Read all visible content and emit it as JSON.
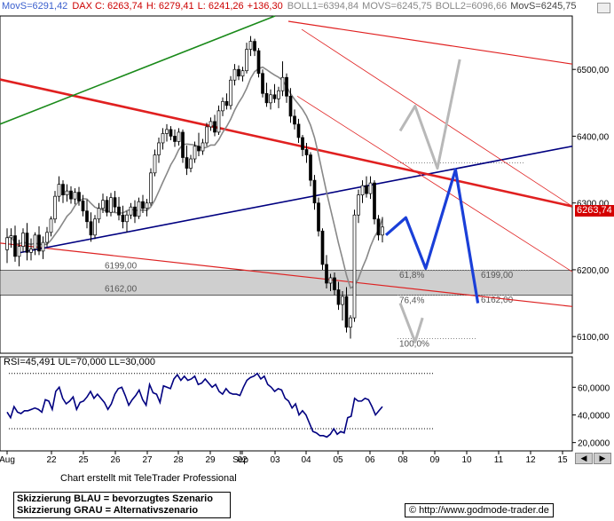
{
  "header": {
    "parts": [
      {
        "text": "MovS=6291,42",
        "color": "#3a5fcd"
      },
      {
        "text": "DAX C: 6263,74",
        "color": "#cc0000"
      },
      {
        "text": "H: 6279,41",
        "color": "#cc0000"
      },
      {
        "text": "L: 6241,26",
        "color": "#cc0000"
      },
      {
        "text": "+136,30",
        "color": "#cc0000"
      },
      {
        "text": "BOLL1=6394,84",
        "color": "#888888"
      },
      {
        "text": "MOVS=6245,75",
        "color": "#888888"
      },
      {
        "text": "BOLL2=6096,66",
        "color": "#888888"
      },
      {
        "text": "MovS=6245,75",
        "color": "#444444"
      }
    ]
  },
  "chart_data": [
    {
      "type": "candlestick",
      "y_ticks": [
        "6500,00",
        "6400,00",
        "6300,00",
        "6200,00",
        "6100,00"
      ],
      "ylim": [
        6075,
        6580
      ],
      "x_tick_labels": [
        "Aug",
        "22",
        "25",
        "26",
        "27",
        "28",
        "29",
        "Sep",
        "02",
        "03",
        "04",
        "05",
        "06",
        "08",
        "09",
        "10",
        "11",
        "12",
        "15"
      ],
      "price_tag": {
        "text": "6263,74",
        "color": "#d40000"
      },
      "support_zone": {
        "from": 6162,
        "to": 6199,
        "labels": [
          "6199,00",
          "6162,00"
        ]
      },
      "right_labels": [
        "6199,00",
        "6162,00"
      ],
      "fib_labels": [
        "61,8%",
        "76,4%",
        "100,0%"
      ],
      "ohlc": [
        {
          "o": 6230,
          "h": 6262,
          "l": 6210,
          "c": 6248
        },
        {
          "o": 6248,
          "h": 6262,
          "l": 6233,
          "c": 6251
        },
        {
          "o": 6251,
          "h": 6266,
          "l": 6212,
          "c": 6220
        },
        {
          "o": 6220,
          "h": 6245,
          "l": 6205,
          "c": 6235
        },
        {
          "o": 6235,
          "h": 6262,
          "l": 6226,
          "c": 6255
        },
        {
          "o": 6255,
          "h": 6270,
          "l": 6214,
          "c": 6226
        },
        {
          "o": 6226,
          "h": 6247,
          "l": 6214,
          "c": 6231
        },
        {
          "o": 6231,
          "h": 6256,
          "l": 6222,
          "c": 6252
        },
        {
          "o": 6252,
          "h": 6265,
          "l": 6222,
          "c": 6228
        },
        {
          "o": 6228,
          "h": 6250,
          "l": 6216,
          "c": 6241
        },
        {
          "o": 6241,
          "h": 6264,
          "l": 6234,
          "c": 6256
        },
        {
          "o": 6256,
          "h": 6280,
          "l": 6250,
          "c": 6276
        },
        {
          "o": 6276,
          "h": 6318,
          "l": 6270,
          "c": 6310
        },
        {
          "o": 6310,
          "h": 6340,
          "l": 6302,
          "c": 6328
        },
        {
          "o": 6328,
          "h": 6334,
          "l": 6300,
          "c": 6312
        },
        {
          "o": 6312,
          "h": 6328,
          "l": 6302,
          "c": 6318
        },
        {
          "o": 6318,
          "h": 6325,
          "l": 6299,
          "c": 6306
        },
        {
          "o": 6306,
          "h": 6322,
          "l": 6298,
          "c": 6316
        },
        {
          "o": 6316,
          "h": 6324,
          "l": 6296,
          "c": 6303
        },
        {
          "o": 6303,
          "h": 6312,
          "l": 6280,
          "c": 6288
        },
        {
          "o": 6288,
          "h": 6305,
          "l": 6262,
          "c": 6272
        },
        {
          "o": 6272,
          "h": 6286,
          "l": 6242,
          "c": 6252
        },
        {
          "o": 6252,
          "h": 6282,
          "l": 6246,
          "c": 6276
        },
        {
          "o": 6276,
          "h": 6300,
          "l": 6270,
          "c": 6292
        },
        {
          "o": 6292,
          "h": 6314,
          "l": 6285,
          "c": 6304
        },
        {
          "o": 6304,
          "h": 6310,
          "l": 6280,
          "c": 6286
        },
        {
          "o": 6286,
          "h": 6315,
          "l": 6280,
          "c": 6308
        },
        {
          "o": 6308,
          "h": 6318,
          "l": 6286,
          "c": 6294
        },
        {
          "o": 6294,
          "h": 6309,
          "l": 6274,
          "c": 6282
        },
        {
          "o": 6282,
          "h": 6296,
          "l": 6262,
          "c": 6272
        },
        {
          "o": 6272,
          "h": 6288,
          "l": 6256,
          "c": 6282
        },
        {
          "o": 6282,
          "h": 6300,
          "l": 6276,
          "c": 6294
        },
        {
          "o": 6294,
          "h": 6304,
          "l": 6270,
          "c": 6280
        },
        {
          "o": 6280,
          "h": 6308,
          "l": 6276,
          "c": 6302
        },
        {
          "o": 6302,
          "h": 6312,
          "l": 6285,
          "c": 6292
        },
        {
          "o": 6292,
          "h": 6306,
          "l": 6280,
          "c": 6300
        },
        {
          "o": 6300,
          "h": 6352,
          "l": 6296,
          "c": 6345
        },
        {
          "o": 6345,
          "h": 6380,
          "l": 6340,
          "c": 6372
        },
        {
          "o": 6372,
          "h": 6398,
          "l": 6360,
          "c": 6390
        },
        {
          "o": 6390,
          "h": 6412,
          "l": 6380,
          "c": 6404
        },
        {
          "o": 6404,
          "h": 6418,
          "l": 6392,
          "c": 6410
        },
        {
          "o": 6410,
          "h": 6415,
          "l": 6394,
          "c": 6400
        },
        {
          "o": 6400,
          "h": 6410,
          "l": 6384,
          "c": 6392
        },
        {
          "o": 6392,
          "h": 6412,
          "l": 6386,
          "c": 6406
        },
        {
          "o": 6406,
          "h": 6410,
          "l": 6360,
          "c": 6368
        },
        {
          "o": 6368,
          "h": 6386,
          "l": 6342,
          "c": 6352
        },
        {
          "o": 6352,
          "h": 6372,
          "l": 6346,
          "c": 6366
        },
        {
          "o": 6366,
          "h": 6392,
          "l": 6360,
          "c": 6385
        },
        {
          "o": 6385,
          "h": 6405,
          "l": 6370,
          "c": 6378
        },
        {
          "o": 6378,
          "h": 6396,
          "l": 6372,
          "c": 6390
        },
        {
          "o": 6390,
          "h": 6420,
          "l": 6385,
          "c": 6414
        },
        {
          "o": 6414,
          "h": 6428,
          "l": 6408,
          "c": 6422
        },
        {
          "o": 6422,
          "h": 6432,
          "l": 6400,
          "c": 6406
        },
        {
          "o": 6406,
          "h": 6446,
          "l": 6402,
          "c": 6438
        },
        {
          "o": 6438,
          "h": 6458,
          "l": 6430,
          "c": 6452
        },
        {
          "o": 6452,
          "h": 6464,
          "l": 6440,
          "c": 6446
        },
        {
          "o": 6446,
          "h": 6490,
          "l": 6440,
          "c": 6484
        },
        {
          "o": 6484,
          "h": 6508,
          "l": 6476,
          "c": 6500
        },
        {
          "o": 6500,
          "h": 6506,
          "l": 6484,
          "c": 6490
        },
        {
          "o": 6490,
          "h": 6504,
          "l": 6482,
          "c": 6498
        },
        {
          "o": 6498,
          "h": 6540,
          "l": 6494,
          "c": 6530
        },
        {
          "o": 6530,
          "h": 6550,
          "l": 6520,
          "c": 6542
        },
        {
          "o": 6542,
          "h": 6546,
          "l": 6520,
          "c": 6528
        },
        {
          "o": 6528,
          "h": 6532,
          "l": 6488,
          "c": 6494
        },
        {
          "o": 6494,
          "h": 6500,
          "l": 6458,
          "c": 6464
        },
        {
          "o": 6464,
          "h": 6480,
          "l": 6444,
          "c": 6450
        },
        {
          "o": 6450,
          "h": 6470,
          "l": 6440,
          "c": 6462
        },
        {
          "o": 6462,
          "h": 6478,
          "l": 6450,
          "c": 6456
        },
        {
          "o": 6456,
          "h": 6474,
          "l": 6442,
          "c": 6468
        },
        {
          "o": 6468,
          "h": 6512,
          "l": 6460,
          "c": 6488
        },
        {
          "o": 6488,
          "h": 6494,
          "l": 6450,
          "c": 6460
        },
        {
          "o": 6460,
          "h": 6472,
          "l": 6420,
          "c": 6430
        },
        {
          "o": 6430,
          "h": 6440,
          "l": 6410,
          "c": 6418
        },
        {
          "o": 6418,
          "h": 6426,
          "l": 6390,
          "c": 6398
        },
        {
          "o": 6398,
          "h": 6402,
          "l": 6370,
          "c": 6380
        },
        {
          "o": 6380,
          "h": 6390,
          "l": 6360,
          "c": 6372
        },
        {
          "o": 6372,
          "h": 6376,
          "l": 6325,
          "c": 6334
        },
        {
          "o": 6334,
          "h": 6342,
          "l": 6290,
          "c": 6300
        },
        {
          "o": 6300,
          "h": 6308,
          "l": 6250,
          "c": 6258
        },
        {
          "o": 6258,
          "h": 6262,
          "l": 6200,
          "c": 6208
        },
        {
          "o": 6208,
          "h": 6222,
          "l": 6172,
          "c": 6180
        },
        {
          "o": 6180,
          "h": 6194,
          "l": 6168,
          "c": 6188
        },
        {
          "o": 6188,
          "h": 6196,
          "l": 6162,
          "c": 6170
        },
        {
          "o": 6170,
          "h": 6182,
          "l": 6140,
          "c": 6148
        },
        {
          "o": 6148,
          "h": 6168,
          "l": 6124,
          "c": 6160
        },
        {
          "o": 6160,
          "h": 6174,
          "l": 6106,
          "c": 6114
        },
        {
          "o": 6114,
          "h": 6132,
          "l": 6097,
          "c": 6128
        },
        {
          "o": 6128,
          "h": 6290,
          "l": 6122,
          "c": 6282
        },
        {
          "o": 6282,
          "h": 6320,
          "l": 6270,
          "c": 6312
        },
        {
          "o": 6312,
          "h": 6334,
          "l": 6300,
          "c": 6326
        },
        {
          "o": 6326,
          "h": 6340,
          "l": 6308,
          "c": 6314
        },
        {
          "o": 6314,
          "h": 6340,
          "l": 6306,
          "c": 6330
        },
        {
          "o": 6330,
          "h": 6334,
          "l": 6268,
          "c": 6276
        },
        {
          "o": 6276,
          "h": 6282,
          "l": 6244,
          "c": 6252
        },
        {
          "o": 6252,
          "h": 6279,
          "l": 6241,
          "c": 6264
        }
      ],
      "scenarios": {
        "blue": [
          [
            6252,
            0
          ],
          [
            6278,
            1.6
          ],
          [
            6202,
            3.2
          ],
          [
            6350,
            5.6
          ],
          [
            6150,
            7.4
          ]
        ],
        "gray_up": [
          [
            6408,
            0
          ],
          [
            6445,
            1.2
          ],
          [
            6352,
            3.0
          ],
          [
            6515,
            4.8
          ]
        ],
        "gray_down": [
          [
            6150,
            0
          ],
          [
            6092,
            1.2
          ],
          [
            6128,
            1.8
          ]
        ]
      }
    },
    {
      "type": "line",
      "title": "RSI=45,491 UL=70,000 LL=30,000",
      "y_ticks": [
        "60,0000",
        "40,0000",
        "20,0000"
      ],
      "ylim": [
        14,
        82
      ],
      "upper": 70,
      "lower": 30,
      "values": [
        42,
        38,
        46,
        42,
        41,
        43,
        43,
        44,
        45,
        44,
        42,
        51,
        50,
        44,
        57,
        60,
        52,
        48,
        50,
        53,
        44,
        49,
        50,
        53,
        57,
        52,
        55,
        52,
        49,
        44,
        48,
        55,
        59,
        60,
        54,
        47,
        51,
        54,
        58,
        51,
        47,
        62,
        56,
        55,
        49,
        61,
        60,
        59,
        66,
        69,
        65,
        68,
        65,
        66,
        68,
        62,
        63,
        66,
        63,
        60,
        62,
        57,
        55,
        59,
        56,
        55,
        55,
        54,
        60,
        65,
        67,
        68,
        70,
        66,
        68,
        62,
        60,
        57,
        59,
        58,
        52,
        50,
        45,
        48,
        40,
        43,
        40,
        34,
        28,
        27,
        25,
        25,
        24,
        26,
        30,
        26,
        28,
        27,
        38,
        39,
        52,
        50,
        50,
        52,
        51,
        46,
        40,
        43,
        46
      ]
    }
  ],
  "footer": {
    "credit": "Chart erstellt mit TeleTrader Professional",
    "legend_blue": "Skizzierung BLAU = bevorzugtes Szenario",
    "legend_gray": "Skizzierung GRAU = Alternativszenario",
    "url": "© http://www.godmode-trader.de"
  }
}
